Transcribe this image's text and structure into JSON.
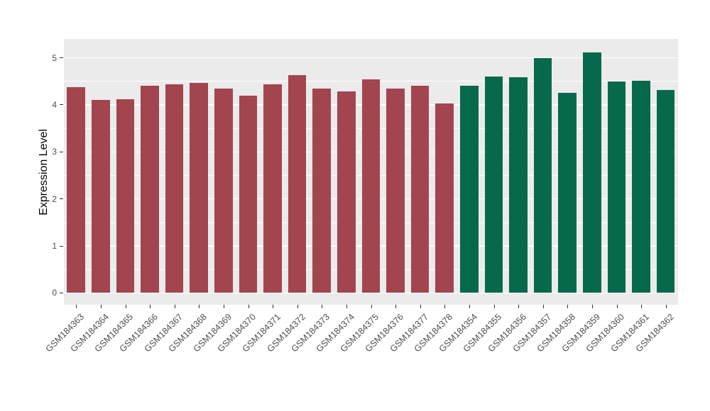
{
  "chart_data": {
    "type": "bar",
    "title": "",
    "xlabel": "",
    "ylabel": "Expression Level",
    "ytick_labels": [
      "0",
      "1",
      "2",
      "3",
      "4",
      "5"
    ],
    "yticks": [
      0,
      1,
      2,
      3,
      4,
      5
    ],
    "ylim": [
      -0.25,
      5.4
    ],
    "grid": true,
    "legend_position": "none",
    "panel_background": "#EBEBEB",
    "gridline_color": "#FFFFFF",
    "series": [
      {
        "name": "group-1",
        "color": "#A2454F",
        "categories": [
          "GSM184363",
          "GSM184364",
          "GSM184365",
          "GSM184366",
          "GSM184367",
          "GSM184368",
          "GSM184369",
          "GSM184370",
          "GSM184371",
          "GSM184372",
          "GSM184373",
          "GSM184374",
          "GSM184375",
          "GSM184376",
          "GSM184377",
          "GSM184378"
        ],
        "values": [
          4.37,
          4.1,
          4.12,
          4.41,
          4.44,
          4.47,
          4.34,
          4.19,
          4.44,
          4.63,
          4.34,
          4.28,
          4.54,
          4.35,
          4.41,
          4.03
        ]
      },
      {
        "name": "group-2",
        "color": "#07694B",
        "categories": [
          "GSM184354",
          "GSM184355",
          "GSM184356",
          "GSM184357",
          "GSM184358",
          "GSM184359",
          "GSM184360",
          "GSM184361",
          "GSM184362"
        ],
        "values": [
          4.4,
          4.6,
          4.59,
          4.99,
          4.26,
          5.12,
          4.5,
          4.51,
          4.31
        ]
      }
    ]
  }
}
